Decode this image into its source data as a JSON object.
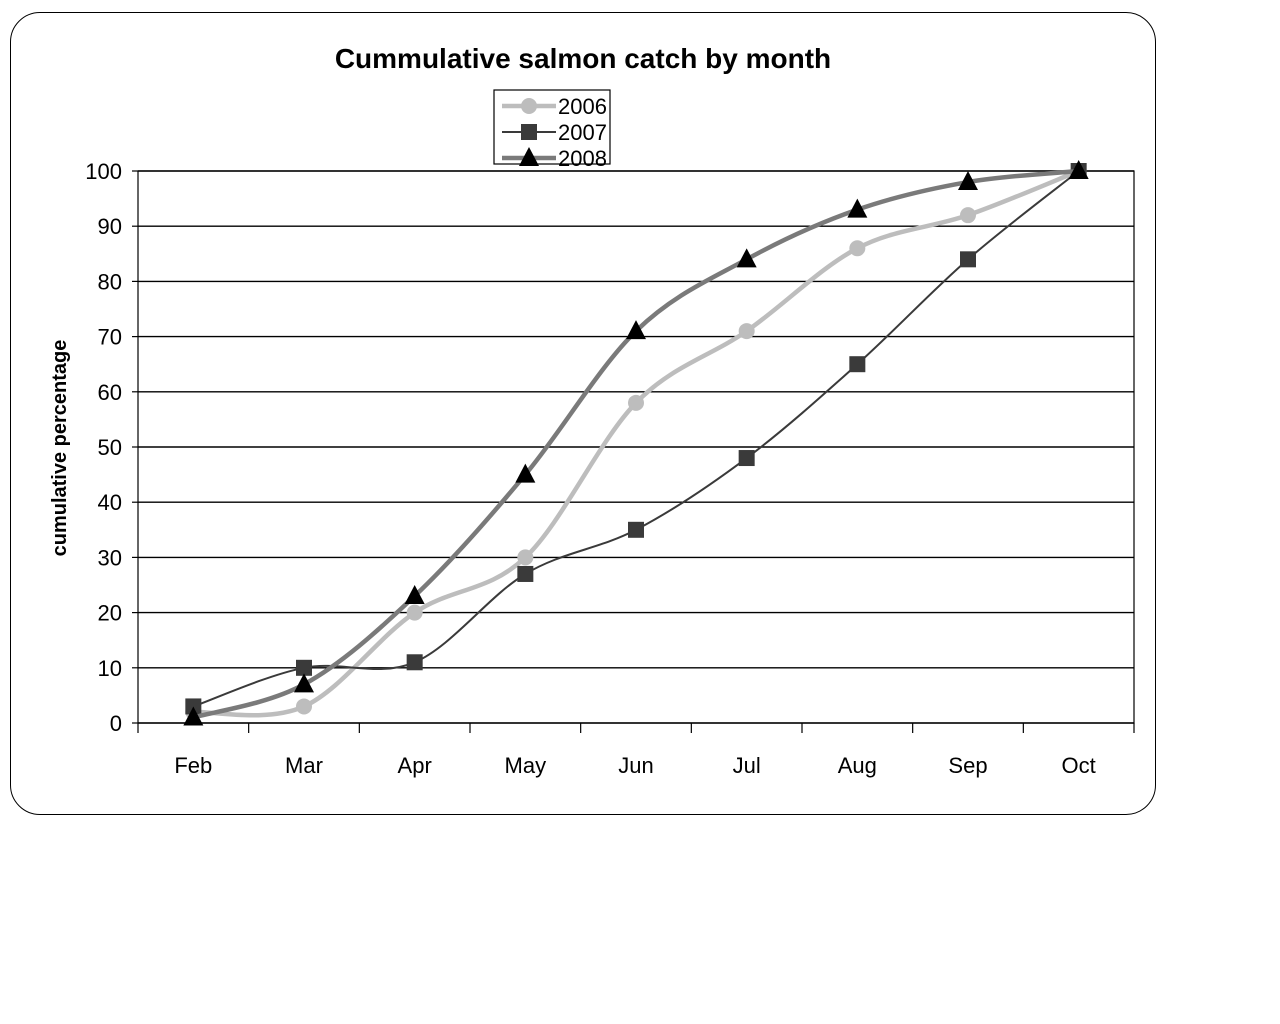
{
  "chart_data": {
    "type": "line",
    "title": "Cummulative salmon catch by month",
    "xlabel": "",
    "ylabel": "cumulative percentage",
    "categories": [
      "Feb",
      "Mar",
      "Apr",
      "May",
      "Jun",
      "Jul",
      "Aug",
      "Sep",
      "Oct"
    ],
    "ylim": [
      0,
      100
    ],
    "yticks": [
      0,
      10,
      20,
      30,
      40,
      50,
      60,
      70,
      80,
      90,
      100
    ],
    "grid": true,
    "legend_position": "top-center",
    "series": [
      {
        "name": "2006",
        "values": [
          2,
          3,
          20,
          30,
          58,
          71,
          86,
          92,
          100
        ],
        "color": "#bdbdbd",
        "marker": "circle",
        "smooth": true
      },
      {
        "name": "2007",
        "values": [
          3,
          10,
          11,
          27,
          35,
          48,
          65,
          84,
          100
        ],
        "color": "#3a3a3a",
        "marker": "square",
        "smooth": true
      },
      {
        "name": "2008",
        "values": [
          1,
          7,
          23,
          45,
          71,
          84,
          93,
          98,
          100
        ],
        "color": "#7a7a7a",
        "marker": "triangle",
        "smooth": true
      }
    ]
  }
}
